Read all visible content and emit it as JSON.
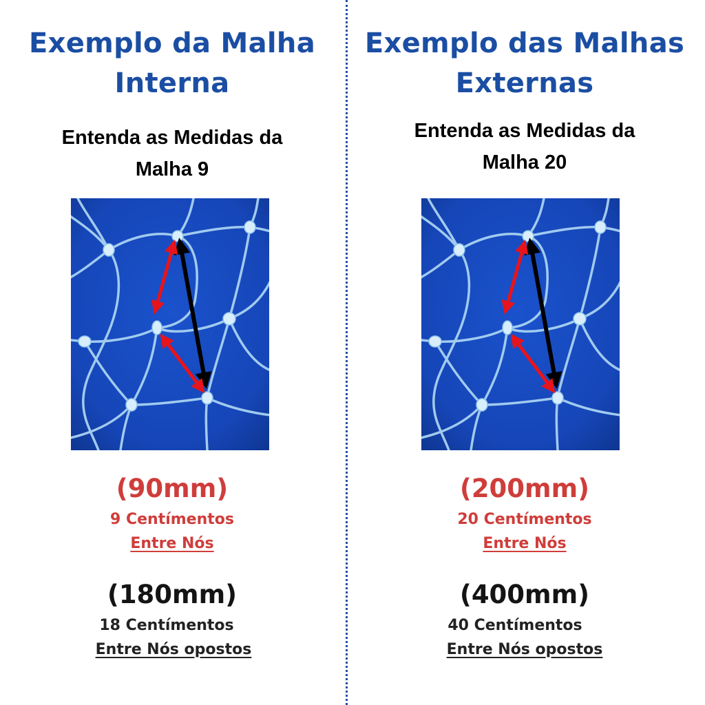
{
  "left": {
    "title_line1": "Exemplo da Malha",
    "title_line2": "Interna",
    "subtitle_line1": "Entenda as Medidas da",
    "subtitle_line2": "Malha 9",
    "knot_measure": "(90mm)",
    "knot_cm": "9 Centímentos",
    "knot_caption": "Entre Nós",
    "opposite_measure": "(180mm)",
    "opposite_cm": "18 Centímentos",
    "opposite_caption": "Entre Nós opostos"
  },
  "right": {
    "title_line1": "Exemplo das Malhas",
    "title_line2": "Externas",
    "subtitle_line1": "Entenda as Medidas da",
    "subtitle_line2": "Malha 20",
    "knot_measure": "(200mm)",
    "knot_cm": "20 Centímentos",
    "knot_caption": "Entre Nós",
    "opposite_measure": "(400mm)",
    "opposite_cm": "40 Centímentos",
    "opposite_caption": "Entre Nós opostos"
  },
  "colors": {
    "title": "#1b4ea3",
    "accent_red": "#cf3d3a",
    "net_background": "#1646b8",
    "net_rope": "#a9d2f2",
    "arrow_red": "#e8141b",
    "arrow_black": "#000000"
  }
}
